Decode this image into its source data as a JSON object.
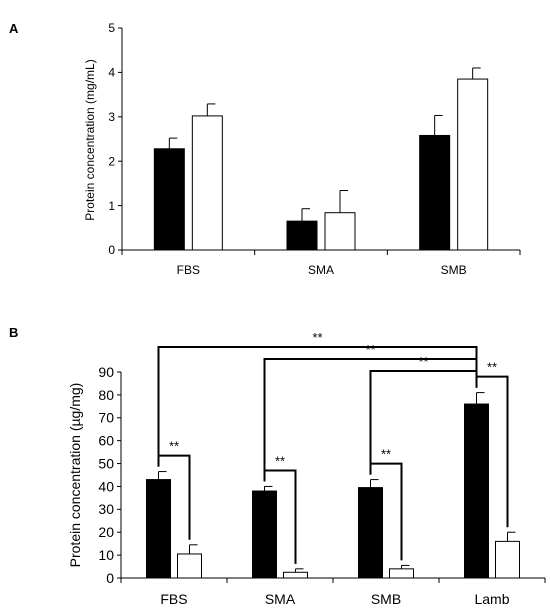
{
  "panels": [
    {
      "label": "A"
    },
    {
      "label": "B"
    }
  ],
  "chart_data": [
    {
      "type": "bar",
      "categories": [
        "FBS",
        "SMA",
        "SMB"
      ],
      "ylabel": "Protein concentration (mg/mL)",
      "ylim": [
        0,
        5
      ],
      "yticks": [
        0,
        1,
        2,
        3,
        4,
        5
      ],
      "grid": false,
      "legend": "none",
      "series": [
        {
          "fill": "#000000",
          "values": [
            2.28,
            0.65,
            2.58
          ],
          "errors": [
            0.24,
            0.28,
            0.45
          ]
        },
        {
          "fill": "#ffffff",
          "values": [
            3.02,
            0.84,
            3.85
          ],
          "errors": [
            0.27,
            0.5,
            0.25
          ]
        }
      ]
    },
    {
      "type": "bar",
      "categories": [
        "FBS",
        "SMA",
        "SMB",
        "Lamb"
      ],
      "ylabel": "Protein concentration (µg/mg)",
      "ylim": [
        0,
        90
      ],
      "yticks": [
        0,
        10,
        20,
        30,
        40,
        50,
        60,
        70,
        80,
        90
      ],
      "grid": false,
      "legend": "none",
      "series": [
        {
          "fill": "#000000",
          "values": [
            43,
            38,
            39.5,
            76
          ],
          "errors": [
            3.5,
            2,
            3.5,
            5
          ]
        },
        {
          "fill": "#ffffff",
          "values": [
            10.5,
            2.5,
            4,
            16
          ],
          "errors": [
            4,
            1.5,
            1.5,
            4
          ]
        }
      ],
      "significance": [
        {
          "from": "FBS:1",
          "to": "FBS:2",
          "label": "**"
        },
        {
          "from": "SMA:1",
          "to": "SMA:2",
          "label": "**"
        },
        {
          "from": "SMB:1",
          "to": "SMB:2",
          "label": "**"
        },
        {
          "from": "Lamb:1",
          "to": "Lamb:2",
          "label": "**"
        },
        {
          "from": "FBS:1",
          "to": "Lamb:1",
          "label": "**"
        },
        {
          "from": "SMA:1",
          "to": "Lamb:1",
          "label": "**"
        },
        {
          "from": "SMB:1",
          "to": "Lamb:1",
          "label": "**"
        }
      ]
    }
  ]
}
